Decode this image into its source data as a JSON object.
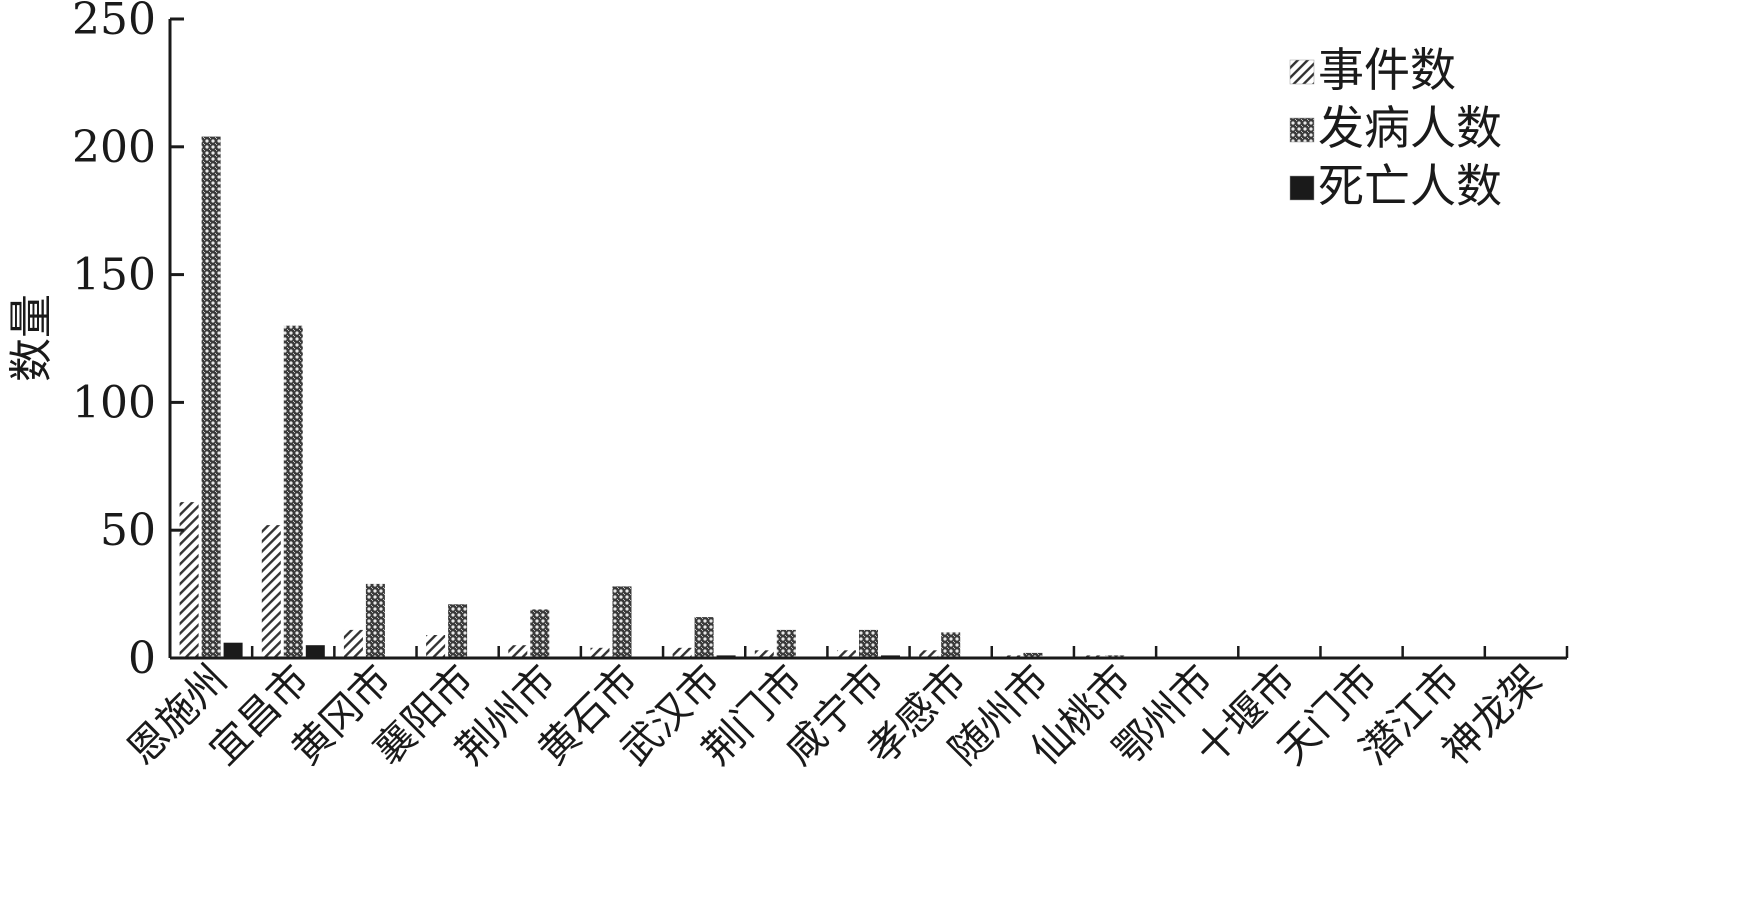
{
  "chart_data": {
    "type": "bar",
    "ylabel": "数量",
    "ylim": [
      0,
      250
    ],
    "yticks": [
      "0",
      "50",
      "100",
      "150",
      "200",
      "250"
    ],
    "grid": false,
    "legend_position": "top-right",
    "categories": [
      "恩施州",
      "宜昌市",
      "黄冈市",
      "襄阳市",
      "荆州市",
      "黄石市",
      "武汉市",
      "荆门市",
      "咸宁市",
      "孝感市",
      "随州市",
      "仙桃市",
      "鄂州市",
      "十堰市",
      "天门市",
      "潜江市",
      "神龙架"
    ],
    "series": [
      {
        "name": "事件数",
        "pattern": "diagonal-hatch",
        "values": [
          61,
          52,
          11,
          9,
          5,
          4,
          4,
          3,
          3,
          3,
          1,
          1,
          0,
          0,
          0,
          0,
          0
        ]
      },
      {
        "name": "发病人数",
        "pattern": "crosshatch",
        "values": [
          204,
          130,
          29,
          21,
          19,
          28,
          16,
          11,
          11,
          10,
          2,
          1,
          0,
          0,
          0,
          0,
          0
        ]
      },
      {
        "name": "死亡人数",
        "pattern": "solid-dark",
        "values": [
          6,
          5,
          0,
          0,
          0,
          0,
          1,
          0,
          1,
          0,
          0,
          0,
          0,
          0,
          0,
          0,
          0
        ]
      }
    ]
  },
  "colors": {
    "axis": "#1a1a1a",
    "dark_bar": "#1a1a1a",
    "hatch": "#333333"
  }
}
